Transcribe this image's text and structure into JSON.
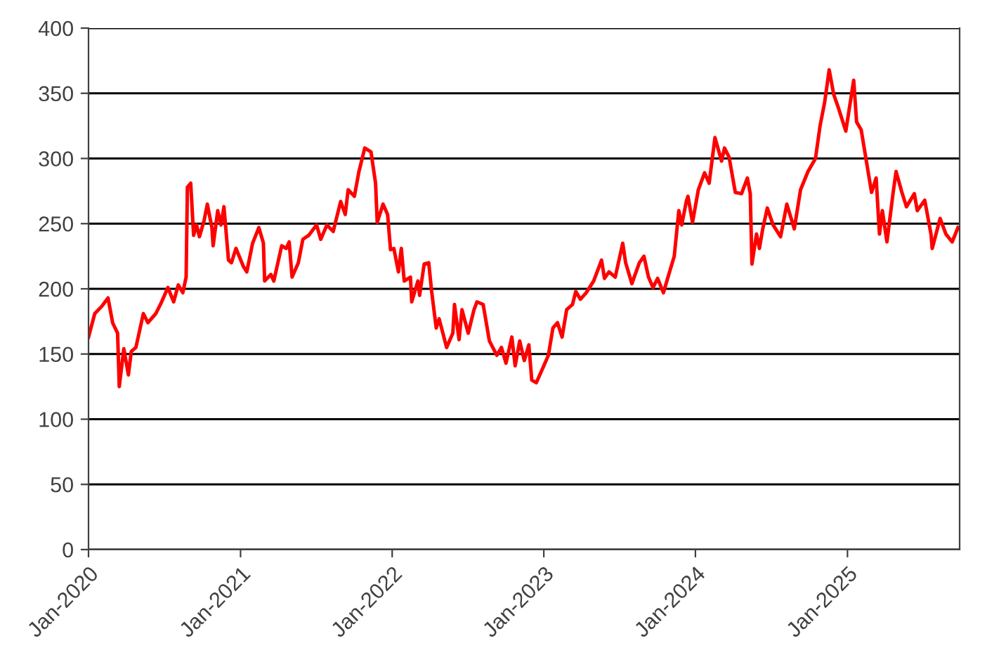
{
  "chart_data": {
    "type": "line",
    "grid": "y",
    "legend": false,
    "marker": "none",
    "line_style": "solid",
    "xlim": [
      "2020-01-01",
      "2025-09-28"
    ],
    "ylim": [
      0,
      400
    ],
    "xticks": [
      {
        "value": "2020-01",
        "label": "Jan-2020"
      },
      {
        "value": "2021-01",
        "label": "Jan-2021"
      },
      {
        "value": "2022-01",
        "label": "Jan-2022"
      },
      {
        "value": "2023-01",
        "label": "Jan-2023"
      },
      {
        "value": "2024-01",
        "label": "Jan-2024"
      },
      {
        "value": "2025-01",
        "label": "Jan-2025"
      }
    ],
    "yticks": [
      0,
      50,
      100,
      150,
      200,
      250,
      300,
      350,
      400
    ],
    "x": [
      "2020-01-01",
      "2020-01-16",
      "2020-02-03",
      "2020-02-17",
      "2020-02-28",
      "2020-03-11",
      "2020-03-15",
      "2020-03-26",
      "2020-04-06",
      "2020-04-13",
      "2020-04-24",
      "2020-05-12",
      "2020-05-23",
      "2020-06-11",
      "2020-06-25",
      "2020-07-10",
      "2020-07-24",
      "2020-08-04",
      "2020-08-15",
      "2020-08-23",
      "2020-08-26",
      "2020-09-03",
      "2020-09-10",
      "2020-09-17",
      "2020-09-24",
      "2020-10-05",
      "2020-10-13",
      "2020-10-24",
      "2020-10-27",
      "2020-11-07",
      "2020-11-15",
      "2020-11-22",
      "2020-12-03",
      "2020-12-10",
      "2020-12-21",
      "2021-01-08",
      "2021-01-16",
      "2021-01-30",
      "2021-02-14",
      "2021-02-25",
      "2021-02-28",
      "2021-03-15",
      "2021-03-22",
      "2021-04-10",
      "2021-04-21",
      "2021-04-28",
      "2021-05-05",
      "2021-05-20",
      "2021-05-31",
      "2021-06-14",
      "2021-07-03",
      "2021-07-13",
      "2021-07-28",
      "2021-08-12",
      "2021-08-30",
      "2021-09-10",
      "2021-09-17",
      "2021-10-02",
      "2021-10-13",
      "2021-10-27",
      "2021-11-11",
      "2021-11-22",
      "2021-11-26",
      "2021-12-10",
      "2021-12-21",
      "2021-12-28",
      "2022-01-05",
      "2022-01-16",
      "2022-01-23",
      "2022-01-30",
      "2022-02-14",
      "2022-02-17",
      "2022-03-04",
      "2022-03-08",
      "2022-03-19",
      "2022-03-30",
      "2022-04-06",
      "2022-04-17",
      "2022-04-24",
      "2022-05-12",
      "2022-05-27",
      "2022-05-31",
      "2022-06-11",
      "2022-06-18",
      "2022-07-03",
      "2022-07-17",
      "2022-07-24",
      "2022-08-08",
      "2022-08-23",
      "2022-09-10",
      "2022-09-21",
      "2022-10-02",
      "2022-10-16",
      "2022-10-24",
      "2022-11-04",
      "2022-11-15",
      "2022-11-26",
      "2022-12-03",
      "2022-12-14",
      "2023-01-01",
      "2023-01-12",
      "2023-01-23",
      "2023-02-03",
      "2023-02-14",
      "2023-02-25",
      "2023-03-11",
      "2023-03-19",
      "2023-03-30",
      "2023-04-13",
      "2023-05-01",
      "2023-05-20",
      "2023-05-27",
      "2023-06-07",
      "2023-06-22",
      "2023-07-10",
      "2023-07-17",
      "2023-08-01",
      "2023-08-19",
      "2023-08-30",
      "2023-09-10",
      "2023-09-21",
      "2023-10-02",
      "2023-10-16",
      "2023-10-27",
      "2023-11-11",
      "2023-11-22",
      "2023-11-29",
      "2023-12-10",
      "2023-12-14",
      "2023-12-25",
      "2024-01-08",
      "2024-01-23",
      "2024-02-03",
      "2024-02-17",
      "2024-03-04",
      "2024-03-11",
      "2024-03-22",
      "2024-04-06",
      "2024-04-21",
      "2024-05-05",
      "2024-05-12",
      "2024-05-16",
      "2024-05-27",
      "2024-06-03",
      "2024-06-11",
      "2024-06-22",
      "2024-07-06",
      "2024-07-24",
      "2024-08-08",
      "2024-08-26",
      "2024-09-10",
      "2024-09-28",
      "2024-10-16",
      "2024-10-27",
      "2024-11-07",
      "2024-11-18",
      "2024-11-29",
      "2024-12-10",
      "2024-12-28",
      "2025-01-16",
      "2025-01-23",
      "2025-02-03",
      "2025-02-17",
      "2025-02-28",
      "2025-03-11",
      "2025-03-19",
      "2025-03-26",
      "2025-04-06",
      "2025-04-21",
      "2025-04-28",
      "2025-05-12",
      "2025-05-23",
      "2025-06-11",
      "2025-06-18",
      "2025-07-06",
      "2025-07-21",
      "2025-07-24",
      "2025-08-12",
      "2025-08-26",
      "2025-09-10",
      "2025-09-24"
    ],
    "series": [
      {
        "color": "#ff0000",
        "values": [
          163,
          181,
          187,
          193,
          174,
          166,
          125,
          154,
          134,
          152,
          155,
          181,
          174,
          181,
          190,
          201,
          190,
          203,
          197,
          209,
          278,
          281,
          241,
          249,
          240,
          252,
          265,
          247,
          233,
          260,
          249,
          263,
          222,
          220,
          231,
          217,
          213,
          235,
          247,
          235,
          206,
          211,
          206,
          233,
          231,
          236,
          209,
          220,
          238,
          241,
          249,
          238,
          249,
          244,
          267,
          257,
          276,
          271,
          290,
          308,
          305,
          281,
          251,
          265,
          257,
          230,
          231,
          213,
          231,
          206,
          209,
          190,
          206,
          195,
          219,
          220,
          198,
          170,
          177,
          155,
          166,
          188,
          161,
          184,
          166,
          184,
          190,
          188,
          160,
          149,
          155,
          143,
          163,
          141,
          160,
          145,
          157,
          130,
          128,
          141,
          149,
          170,
          174,
          163,
          184,
          188,
          198,
          192,
          197,
          206,
          222,
          208,
          213,
          209,
          235,
          220,
          204,
          220,
          225,
          209,
          201,
          208,
          197,
          209,
          225,
          260,
          249,
          267,
          271,
          251,
          276,
          289,
          281,
          316,
          298,
          308,
          301,
          274,
          273,
          285,
          273,
          219,
          242,
          231,
          246,
          262,
          249,
          240,
          265,
          246,
          276,
          290,
          300,
          325,
          343,
          368,
          349,
          339,
          321,
          360,
          328,
          322,
          295,
          274,
          285,
          242,
          260,
          236,
          274,
          290,
          274,
          263,
          273,
          260,
          268,
          242,
          231,
          254,
          242,
          236,
          247
        ]
      }
    ]
  }
}
